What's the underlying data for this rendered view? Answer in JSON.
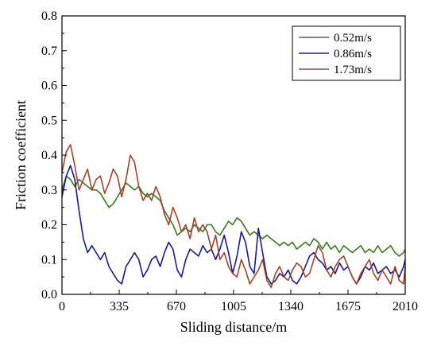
{
  "chart_data": {
    "type": "line",
    "xlabel": "Sliding distance/m",
    "ylabel": "Friction coefficient",
    "xlim": [
      0,
      2010
    ],
    "ylim": [
      0,
      0.8
    ],
    "x_ticks": [
      0,
      335,
      670,
      1005,
      1340,
      1675,
      2010
    ],
    "y_ticks": [
      "0.0",
      "0.1",
      "0.2",
      "0.3",
      "0.4",
      "0.5",
      "0.6",
      "0.7",
      "0.8"
    ],
    "legend_position": "top-right",
    "grid": false,
    "series": [
      {
        "name": "0.52m/s",
        "color": "#3a7a1e",
        "x": [
          0,
          25,
          50,
          75,
          100,
          125,
          150,
          175,
          200,
          225,
          250,
          275,
          300,
          325,
          350,
          375,
          400,
          425,
          450,
          475,
          500,
          525,
          550,
          575,
          600,
          625,
          650,
          675,
          700,
          725,
          750,
          775,
          800,
          825,
          850,
          875,
          900,
          925,
          950,
          975,
          1000,
          1025,
          1050,
          1075,
          1100,
          1125,
          1150,
          1175,
          1200,
          1225,
          1250,
          1275,
          1300,
          1325,
          1350,
          1375,
          1400,
          1425,
          1450,
          1475,
          1500,
          1525,
          1550,
          1575,
          1600,
          1625,
          1650,
          1675,
          1700,
          1725,
          1750,
          1775,
          1800,
          1825,
          1850,
          1875,
          1900,
          1925,
          1950,
          1975,
          2000,
          2010
        ],
        "values": [
          0.3,
          0.34,
          0.33,
          0.31,
          0.33,
          0.32,
          0.31,
          0.3,
          0.3,
          0.29,
          0.27,
          0.25,
          0.26,
          0.28,
          0.3,
          0.32,
          0.31,
          0.3,
          0.31,
          0.29,
          0.28,
          0.29,
          0.28,
          0.27,
          0.24,
          0.22,
          0.2,
          0.17,
          0.18,
          0.19,
          0.18,
          0.2,
          0.19,
          0.18,
          0.2,
          0.2,
          0.18,
          0.17,
          0.19,
          0.21,
          0.2,
          0.22,
          0.21,
          0.19,
          0.17,
          0.18,
          0.17,
          0.16,
          0.17,
          0.16,
          0.15,
          0.14,
          0.15,
          0.14,
          0.15,
          0.13,
          0.14,
          0.15,
          0.14,
          0.16,
          0.15,
          0.13,
          0.15,
          0.13,
          0.14,
          0.12,
          0.14,
          0.13,
          0.12,
          0.13,
          0.14,
          0.12,
          0.13,
          0.12,
          0.14,
          0.12,
          0.13,
          0.14,
          0.12,
          0.11,
          0.12,
          0.13
        ]
      },
      {
        "name": "0.86m/s",
        "color": "#1a1a8c",
        "x": [
          0,
          25,
          50,
          75,
          100,
          125,
          150,
          175,
          200,
          225,
          250,
          275,
          300,
          325,
          350,
          375,
          400,
          425,
          450,
          475,
          500,
          525,
          550,
          575,
          600,
          625,
          650,
          675,
          700,
          725,
          750,
          775,
          800,
          825,
          850,
          875,
          900,
          925,
          950,
          975,
          1000,
          1025,
          1050,
          1075,
          1100,
          1125,
          1150,
          1175,
          1200,
          1225,
          1250,
          1275,
          1300,
          1325,
          1350,
          1375,
          1400,
          1425,
          1450,
          1475,
          1500,
          1525,
          1550,
          1575,
          1600,
          1625,
          1650,
          1675,
          1700,
          1725,
          1750,
          1775,
          1800,
          1825,
          1850,
          1875,
          1900,
          1925,
          1950,
          1975,
          2000,
          2010
        ],
        "values": [
          0.28,
          0.34,
          0.37,
          0.33,
          0.24,
          0.16,
          0.12,
          0.14,
          0.12,
          0.1,
          0.12,
          0.08,
          0.06,
          0.04,
          0.03,
          0.08,
          0.1,
          0.12,
          0.1,
          0.05,
          0.07,
          0.1,
          0.11,
          0.08,
          0.12,
          0.15,
          0.13,
          0.07,
          0.05,
          0.1,
          0.13,
          0.12,
          0.11,
          0.14,
          0.12,
          0.13,
          0.1,
          0.13,
          0.17,
          0.12,
          0.06,
          0.11,
          0.18,
          0.15,
          0.08,
          0.06,
          0.19,
          0.12,
          0.05,
          0.03,
          0.04,
          0.06,
          0.05,
          0.07,
          0.04,
          0.03,
          0.05,
          0.08,
          0.11,
          0.12,
          0.1,
          0.09,
          0.07,
          0.08,
          0.06,
          0.09,
          0.07,
          0.08,
          0.05,
          0.03,
          0.05,
          0.08,
          0.07,
          0.09,
          0.06,
          0.07,
          0.08,
          0.06,
          0.07,
          0.05,
          0.08,
          0.1
        ]
      },
      {
        "name": "1.73m/s",
        "color": "#a0452a",
        "x": [
          0,
          25,
          50,
          75,
          100,
          125,
          150,
          175,
          200,
          225,
          250,
          275,
          300,
          325,
          350,
          375,
          400,
          425,
          450,
          475,
          500,
          525,
          550,
          575,
          600,
          625,
          650,
          675,
          700,
          725,
          750,
          775,
          800,
          825,
          850,
          875,
          900,
          925,
          950,
          975,
          1000,
          1025,
          1050,
          1075,
          1100,
          1125,
          1150,
          1175,
          1200,
          1225,
          1250,
          1275,
          1300,
          1325,
          1350,
          1375,
          1400,
          1425,
          1450,
          1475,
          1500,
          1525,
          1550,
          1575,
          1600,
          1625,
          1650,
          1675,
          1700,
          1725,
          1750,
          1775,
          1800,
          1825,
          1850,
          1875,
          1900,
          1925,
          1950,
          1975,
          2000,
          2010
        ],
        "values": [
          0.35,
          0.41,
          0.43,
          0.37,
          0.3,
          0.33,
          0.36,
          0.3,
          0.33,
          0.34,
          0.29,
          0.32,
          0.36,
          0.34,
          0.28,
          0.33,
          0.4,
          0.38,
          0.31,
          0.27,
          0.29,
          0.27,
          0.31,
          0.28,
          0.23,
          0.2,
          0.25,
          0.22,
          0.18,
          0.2,
          0.16,
          0.22,
          0.18,
          0.2,
          0.18,
          0.13,
          0.17,
          0.1,
          0.12,
          0.08,
          0.06,
          0.05,
          0.1,
          0.07,
          0.03,
          0.05,
          0.07,
          0.1,
          0.04,
          0.02,
          0.06,
          0.08,
          0.05,
          0.04,
          0.07,
          0.09,
          0.08,
          0.05,
          0.06,
          0.1,
          0.14,
          0.12,
          0.07,
          0.05,
          0.08,
          0.1,
          0.11,
          0.08,
          0.05,
          0.03,
          0.06,
          0.08,
          0.1,
          0.06,
          0.04,
          0.07,
          0.05,
          0.03,
          0.08,
          0.04,
          0.03,
          0.08
        ]
      }
    ]
  }
}
